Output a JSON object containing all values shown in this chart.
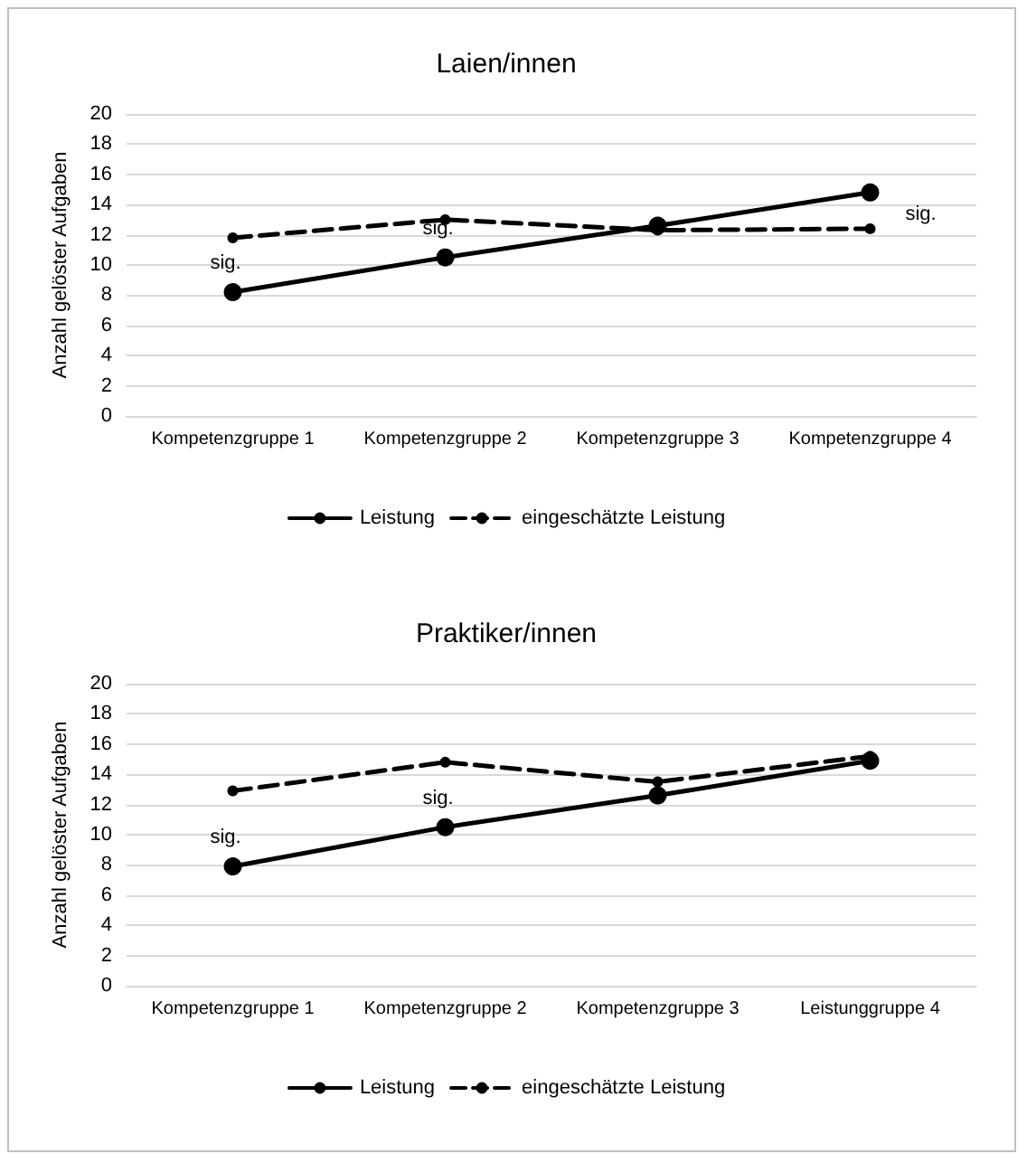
{
  "chart_data": [
    {
      "type": "line",
      "title": "Laien/innen",
      "ylabel": "Anzahl gelöster Aufgaben",
      "categories": [
        "Kompetenzgruppe 1",
        "Kompetenzgruppe 2",
        "Kompetenzgruppe 3",
        "Kompetenzgruppe 4"
      ],
      "series": [
        {
          "name": "Leistung",
          "color": "#000000",
          "line_style": "solid",
          "values": [
            8.2,
            10.5,
            12.6,
            14.8
          ]
        },
        {
          "name": "eingeschätzte Leistung",
          "color": "#000000",
          "line_style": "dashed",
          "values": [
            11.8,
            13.0,
            12.3,
            12.4
          ]
        }
      ],
      "ylim": [
        0,
        20
      ],
      "yticks": [
        0,
        2,
        4,
        6,
        8,
        10,
        12,
        14,
        16,
        18,
        20
      ],
      "grid": "y",
      "legend": "bottom",
      "marker": "circle",
      "annotations": [
        {
          "text": "sig.",
          "x": "Kompetenzgruppe 1",
          "y": 8.2
        },
        {
          "text": "sig.",
          "x": "Kompetenzgruppe 2",
          "y": 10.5
        },
        {
          "text": "sig.",
          "x": "Kompetenzgruppe 4",
          "y": 14.8
        }
      ]
    },
    {
      "type": "line",
      "title": "Praktiker/innen",
      "ylabel": "Anzahl gelöster Aufgaben",
      "categories": [
        "Kompetenzgruppe 1",
        "Kompetenzgruppe 2",
        "Kompetenzgruppe 3",
        "Leistunggruppe 4"
      ],
      "series": [
        {
          "name": "Leistung",
          "color": "#000000",
          "line_style": "solid",
          "values": [
            7.9,
            10.5,
            12.6,
            14.9
          ]
        },
        {
          "name": "eingeschätzte Leistung",
          "color": "#000000",
          "line_style": "dashed",
          "values": [
            12.9,
            14.8,
            13.5,
            15.2
          ]
        }
      ],
      "ylim": [
        0,
        20
      ],
      "yticks": [
        0,
        2,
        4,
        6,
        8,
        10,
        12,
        14,
        16,
        18,
        20
      ],
      "grid": "y",
      "legend": "bottom",
      "marker": "circle",
      "annotations": [
        {
          "text": "sig.",
          "x": "Kompetenzgruppe 1",
          "y": 7.9
        },
        {
          "text": "sig.",
          "x": "Kompetenzgruppe 2",
          "y": 10.5
        }
      ]
    }
  ]
}
